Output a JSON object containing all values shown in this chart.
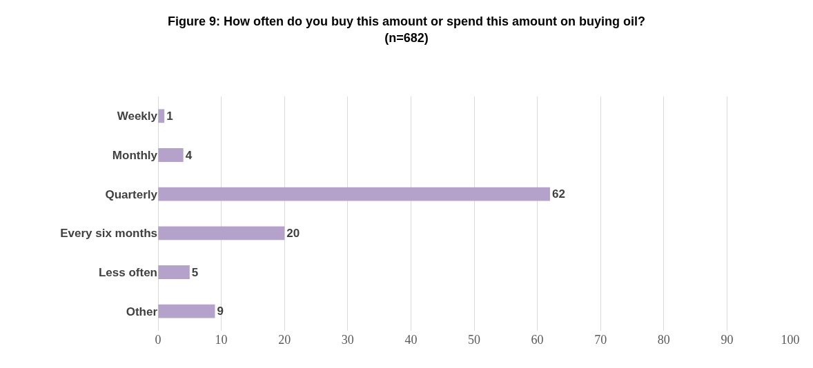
{
  "chart_data": {
    "type": "bar",
    "orientation": "horizontal",
    "title": "Figure 9: How often do you buy this amount or spend this amount on buying oil?\n(n=682)",
    "categories": [
      "Weekly",
      "Monthly",
      "Quarterly",
      "Every six months",
      "Less often",
      "Other"
    ],
    "values": [
      1,
      4,
      62,
      20,
      5,
      9
    ],
    "color": "#b4a2cb",
    "xlim": [
      0,
      100
    ],
    "xticks": [
      0,
      10,
      20,
      30,
      40,
      50,
      60,
      70,
      80,
      90,
      100
    ],
    "grid": "x",
    "data_labels": true
  }
}
